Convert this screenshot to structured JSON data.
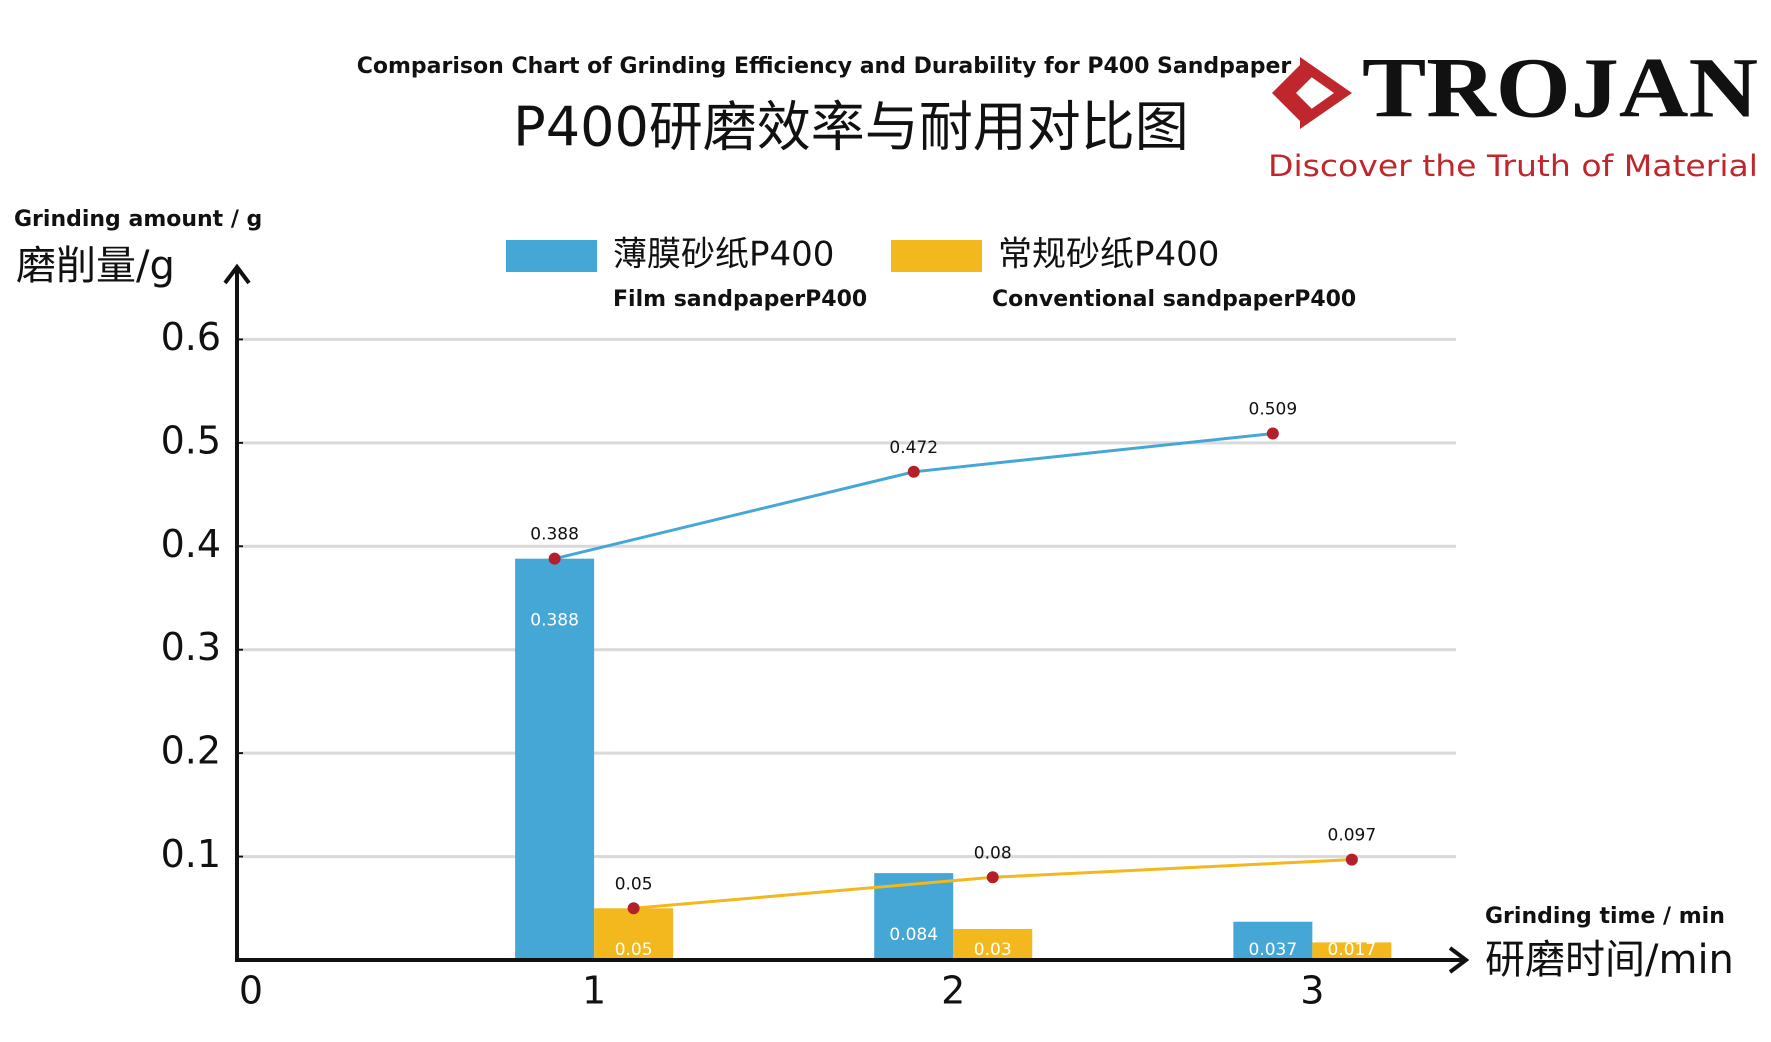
{
  "chart_data": {
    "type": "combo",
    "subtitle": "Comparison Chart of Grinding Efficiency and Durability for P400 Sandpaper",
    "title": "P400研磨效率与耐用对比图",
    "y_label_en": "Grinding amount / g",
    "y_label": "磨削量/g",
    "x_label_en": "Grinding time / min",
    "x_label": "研磨时间/min",
    "x": [
      1,
      2,
      3
    ],
    "xlim": [
      0,
      3.4
    ],
    "xticks": [
      0,
      1,
      2,
      3
    ],
    "ylim": [
      0,
      0.67
    ],
    "yticks": [
      0.1,
      0.2,
      0.3,
      0.4,
      0.5,
      0.6
    ],
    "grid": true,
    "marker_color": "#b3202a",
    "series": [
      {
        "name": "薄膜砂纸P400",
        "name_en": "Film sandpaperP400",
        "color": "#45a7d5",
        "values": [
          0.388,
          0.084,
          0.037
        ],
        "cumulative": [
          0.388,
          0.472,
          0.509
        ]
      },
      {
        "name": "常规砂纸P400",
        "name_en": "Conventional sandpaperP400",
        "color": "#f2b81d",
        "values": [
          0.05,
          0.03,
          0.017
        ],
        "cumulative": [
          0.05,
          0.08,
          0.097
        ]
      }
    ]
  },
  "logo": {
    "brand": "TROJAN",
    "slogan": "Discover the Truth of Material"
  }
}
